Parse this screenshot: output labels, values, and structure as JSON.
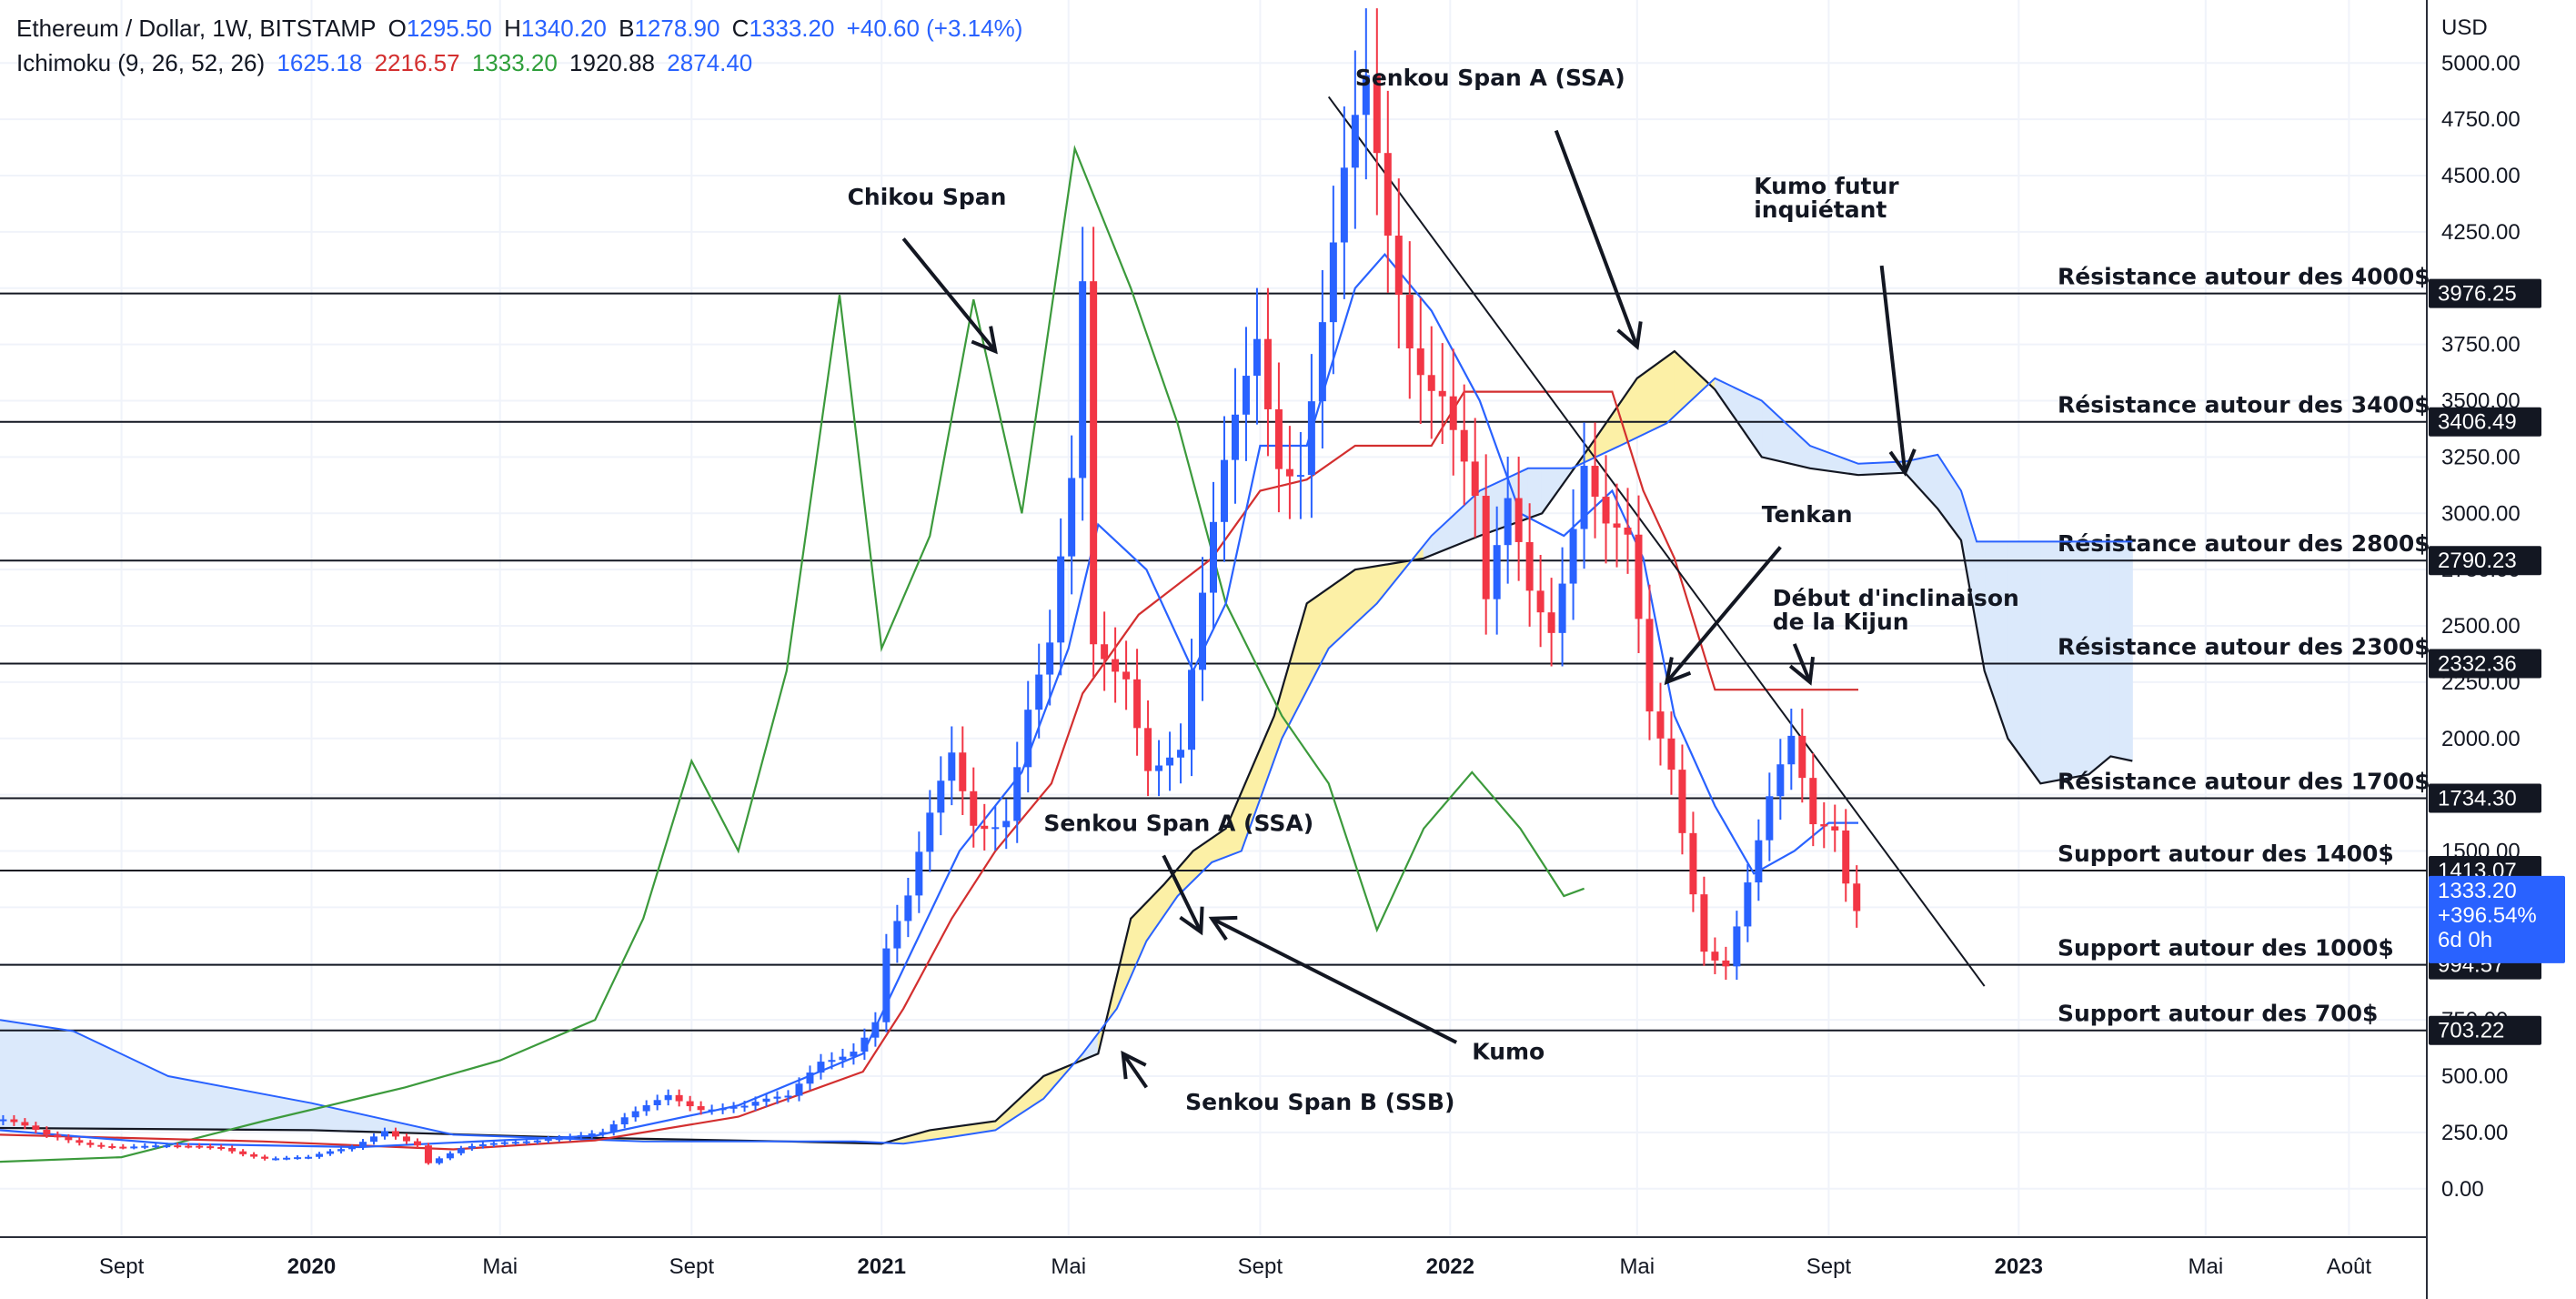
{
  "legend": {
    "symbol": "Ethereum / Dollar, 1W, BITSTAMP",
    "o_label": "O",
    "o_value": "1295.50",
    "h_label": "H",
    "h_value": "1340.20",
    "b_label": "B",
    "b_value": "1278.90",
    "c_label": "C",
    "c_value": "1333.20",
    "change": "+40.60 (+3.14%)",
    "indicator": "Ichimoku (9, 26, 52, 26)",
    "ind_values": [
      "1625.18",
      "2216.57",
      "1333.20",
      "1920.88",
      "2874.40"
    ],
    "ind_colors": [
      "#2962ff",
      "#d32f2f",
      "#2e9e3a",
      "#131722",
      "#2962ff"
    ]
  },
  "colors": {
    "up": "#2962ff",
    "down": "#f23645",
    "tenkan": "#2962ff",
    "kijun": "#d32f2f",
    "chikou": "#3c9a3c",
    "ssa": "#2962ff",
    "ssb": "#131722",
    "kumo_bull": "#dbe9fb",
    "kumo_bear": "#fcf0a6",
    "current_badge": "#2962ff"
  },
  "chart_data": {
    "type": "candlestick",
    "currency": "USD",
    "y_ticks": [
      "0.00",
      "250.00",
      "500.00",
      "750.00",
      "1000.00",
      "1250.00",
      "1500.00",
      "1750.00",
      "2000.00",
      "2250.00",
      "2500.00",
      "2750.00",
      "3000.00",
      "3250.00",
      "3500.00",
      "3750.00",
      "4000.00",
      "4250.00",
      "4500.00",
      "4750.00",
      "5000.00"
    ],
    "x_ticks": [
      {
        "label": "Sept",
        "date": "2019-09-01",
        "bold": false
      },
      {
        "label": "2020",
        "date": "2020-01-01",
        "bold": true
      },
      {
        "label": "Mai",
        "date": "2020-05-01",
        "bold": false
      },
      {
        "label": "Sept",
        "date": "2020-09-01",
        "bold": false
      },
      {
        "label": "2021",
        "date": "2021-01-01",
        "bold": true
      },
      {
        "label": "Mai",
        "date": "2021-05-01",
        "bold": false
      },
      {
        "label": "Sept",
        "date": "2021-09-01",
        "bold": false
      },
      {
        "label": "2022",
        "date": "2022-01-01",
        "bold": true
      },
      {
        "label": "Mai",
        "date": "2022-05-01",
        "bold": false
      },
      {
        "label": "Sept",
        "date": "2022-09-01",
        "bold": false
      },
      {
        "label": "2023",
        "date": "2023-01-01",
        "bold": true
      },
      {
        "label": "Mai",
        "date": "2023-05-01",
        "bold": false
      },
      {
        "label": "Août",
        "date": "2023-08-01",
        "bold": false
      }
    ],
    "x_range": [
      "2019-06-15",
      "2023-09-20"
    ],
    "y_range": [
      -215,
      5280
    ],
    "horizontal_levels": [
      {
        "value": 3976.25,
        "badge": "3976.25",
        "label": "Résistance autour des 4000$"
      },
      {
        "value": 3406.49,
        "badge": "3406.49",
        "label": "Résistance autour des 3400$"
      },
      {
        "value": 2790.23,
        "badge": "2790.23",
        "label": "Résistance autour des 2800$"
      },
      {
        "value": 2332.36,
        "badge": "2332.36",
        "label": "Résistance autour des 2300$"
      },
      {
        "value": 1734.3,
        "badge": "1734.30",
        "label": "Résistance autour des 1700$"
      },
      {
        "value": 1413.07,
        "badge": "1413.07",
        "label": "Support autour des 1400$"
      },
      {
        "value": 994.57,
        "badge": "994.57",
        "label": "Support autour des 1000$"
      },
      {
        "value": 703.22,
        "badge": "703.22",
        "label": "Support autour des 700$"
      }
    ],
    "current_price": {
      "value": 1333.2,
      "lines": [
        "1333.20",
        "+396.54%",
        "6d 0h"
      ]
    },
    "candles": [
      {
        "d": "2019-06-17",
        "c": 300
      },
      {
        "d": "2019-07-15",
        "c": 230
      },
      {
        "d": "2019-08-12",
        "c": 205
      },
      {
        "d": "2019-09-09",
        "c": 190
      },
      {
        "d": "2019-10-07",
        "c": 180
      },
      {
        "d": "2019-11-04",
        "c": 185
      },
      {
        "d": "2019-12-02",
        "c": 140
      },
      {
        "d": "2019-12-30",
        "c": 135
      },
      {
        "d": "2020-01-27",
        "c": 180
      },
      {
        "d": "2020-02-17",
        "c": 270
      },
      {
        "d": "2020-03-09",
        "c": 200
      },
      {
        "d": "2020-03-16",
        "c": 115
      },
      {
        "d": "2020-04-06",
        "c": 170
      },
      {
        "d": "2020-05-04",
        "c": 205
      },
      {
        "d": "2020-06-01",
        "c": 235
      },
      {
        "d": "2020-07-06",
        "c": 240
      },
      {
        "d": "2020-07-27",
        "c": 330
      },
      {
        "d": "2020-08-17",
        "c": 430
      },
      {
        "d": "2020-09-07",
        "c": 370
      },
      {
        "d": "2020-10-05",
        "c": 355
      },
      {
        "d": "2020-11-02",
        "c": 400
      },
      {
        "d": "2020-11-23",
        "c": 590
      },
      {
        "d": "2020-12-14",
        "c": 640
      },
      {
        "d": "2020-12-28",
        "c": 740
      },
      {
        "d": "2021-01-04",
        "c": 1040
      },
      {
        "d": "2021-01-18",
        "c": 1230
      },
      {
        "d": "2021-02-01",
        "c": 1600
      },
      {
        "d": "2021-02-15",
        "c": 1950
      },
      {
        "d": "2021-03-01",
        "c": 1700
      },
      {
        "d": "2021-03-22",
        "c": 1700
      },
      {
        "d": "2021-04-05",
        "c": 2100
      },
      {
        "d": "2021-04-19",
        "c": 2300
      },
      {
        "d": "2021-05-03",
        "c": 3000
      },
      {
        "d": "2021-05-10",
        "c": 3900
      },
      {
        "d": "2021-05-17",
        "c": 2400
      },
      {
        "d": "2021-06-07",
        "c": 2400
      },
      {
        "d": "2021-06-21",
        "c": 1950
      },
      {
        "d": "2021-07-12",
        "c": 1900
      },
      {
        "d": "2021-07-26",
        "c": 2500
      },
      {
        "d": "2021-08-09",
        "c": 3100
      },
      {
        "d": "2021-08-30",
        "c": 3900
      },
      {
        "d": "2021-09-13",
        "c": 3400
      },
      {
        "d": "2021-09-27",
        "c": 3300
      },
      {
        "d": "2021-10-11",
        "c": 3800
      },
      {
        "d": "2021-10-25",
        "c": 4300
      },
      {
        "d": "2021-11-08",
        "c": 4700
      },
      {
        "d": "2021-11-22",
        "c": 4200
      },
      {
        "d": "2021-12-06",
        "c": 3900
      },
      {
        "d": "2021-12-27",
        "c": 3700
      },
      {
        "d": "2022-01-17",
        "c": 3000
      },
      {
        "d": "2022-01-24",
        "c": 2500
      },
      {
        "d": "2022-02-07",
        "c": 2900
      },
      {
        "d": "2022-02-21",
        "c": 2600
      },
      {
        "d": "2022-03-07",
        "c": 2550
      },
      {
        "d": "2022-03-28",
        "c": 3400
      },
      {
        "d": "2022-04-11",
        "c": 3000
      },
      {
        "d": "2022-04-25",
        "c": 2800
      },
      {
        "d": "2022-05-09",
        "c": 2000
      },
      {
        "d": "2022-05-23",
        "c": 1800
      },
      {
        "d": "2022-06-13",
        "c": 1100
      },
      {
        "d": "2022-06-27",
        "c": 1050
      },
      {
        "d": "2022-07-11",
        "c": 1400
      },
      {
        "d": "2022-07-25",
        "c": 1700
      },
      {
        "d": "2022-08-08",
        "c": 1900
      },
      {
        "d": "2022-08-22",
        "c": 1550
      },
      {
        "d": "2022-09-05",
        "c": 1600
      },
      {
        "d": "2022-09-12",
        "c": 1400
      },
      {
        "d": "2022-09-19",
        "c": 1300
      },
      {
        "d": "2022-09-26",
        "c": 1333.2
      }
    ],
    "tenkan": [
      {
        "d": "2019-06-15",
        "v": 260
      },
      {
        "d": "2019-10-01",
        "v": 200
      },
      {
        "d": "2020-02-01",
        "v": 185
      },
      {
        "d": "2020-07-01",
        "v": 235
      },
      {
        "d": "2020-10-01",
        "v": 370
      },
      {
        "d": "2020-12-20",
        "v": 600
      },
      {
        "d": "2021-01-20",
        "v": 1050
      },
      {
        "d": "2021-02-20",
        "v": 1500
      },
      {
        "d": "2021-04-01",
        "v": 1850
      },
      {
        "d": "2021-05-01",
        "v": 2400
      },
      {
        "d": "2021-05-20",
        "v": 2950
      },
      {
        "d": "2021-06-20",
        "v": 2750
      },
      {
        "d": "2021-07-20",
        "v": 2300
      },
      {
        "d": "2021-08-10",
        "v": 2600
      },
      {
        "d": "2021-09-01",
        "v": 3300
      },
      {
        "d": "2021-10-01",
        "v": 3300
      },
      {
        "d": "2021-11-01",
        "v": 4000
      },
      {
        "d": "2021-11-20",
        "v": 4150
      },
      {
        "d": "2021-12-20",
        "v": 3900
      },
      {
        "d": "2022-01-20",
        "v": 3500
      },
      {
        "d": "2022-02-15",
        "v": 3000
      },
      {
        "d": "2022-03-15",
        "v": 2900
      },
      {
        "d": "2022-04-15",
        "v": 3100
      },
      {
        "d": "2022-05-05",
        "v": 2800
      },
      {
        "d": "2022-05-25",
        "v": 2100
      },
      {
        "d": "2022-06-20",
        "v": 1700
      },
      {
        "d": "2022-07-15",
        "v": 1400
      },
      {
        "d": "2022-08-10",
        "v": 1500
      },
      {
        "d": "2022-09-01",
        "v": 1625.18
      },
      {
        "d": "2022-09-20",
        "v": 1625.18
      }
    ],
    "kijun": [
      {
        "d": "2019-06-15",
        "v": 240
      },
      {
        "d": "2019-12-01",
        "v": 210
      },
      {
        "d": "2020-04-01",
        "v": 175
      },
      {
        "d": "2020-07-01",
        "v": 215
      },
      {
        "d": "2020-10-01",
        "v": 320
      },
      {
        "d": "2020-12-20",
        "v": 520
      },
      {
        "d": "2021-01-15",
        "v": 800
      },
      {
        "d": "2021-02-15",
        "v": 1200
      },
      {
        "d": "2021-03-15",
        "v": 1500
      },
      {
        "d": "2021-04-20",
        "v": 1800
      },
      {
        "d": "2021-05-10",
        "v": 2200
      },
      {
        "d": "2021-06-15",
        "v": 2550
      },
      {
        "d": "2021-08-01",
        "v": 2800
      },
      {
        "d": "2021-09-01",
        "v": 3100
      },
      {
        "d": "2021-10-01",
        "v": 3150
      },
      {
        "d": "2021-11-01",
        "v": 3300
      },
      {
        "d": "2021-12-20",
        "v": 3300
      },
      {
        "d": "2022-01-10",
        "v": 3540
      },
      {
        "d": "2022-04-15",
        "v": 3540
      },
      {
        "d": "2022-05-05",
        "v": 3100
      },
      {
        "d": "2022-05-25",
        "v": 2800
      },
      {
        "d": "2022-06-20",
        "v": 2216.57
      },
      {
        "d": "2022-09-20",
        "v": 2216.57
      }
    ],
    "chikou": [
      {
        "d": "2019-06-15",
        "v": 120
      },
      {
        "d": "2019-09-01",
        "v": 140
      },
      {
        "d": "2019-12-01",
        "v": 300
      },
      {
        "d": "2020-03-01",
        "v": 450
      },
      {
        "d": "2020-05-01",
        "v": 570
      },
      {
        "d": "2020-07-01",
        "v": 750
      },
      {
        "d": "2020-08-01",
        "v": 1200
      },
      {
        "d": "2020-09-01",
        "v": 1900
      },
      {
        "d": "2020-10-01",
        "v": 1500
      },
      {
        "d": "2020-11-01",
        "v": 2300
      },
      {
        "d": "2020-12-05",
        "v": 3970
      },
      {
        "d": "2021-01-01",
        "v": 2400
      },
      {
        "d": "2021-02-01",
        "v": 2900
      },
      {
        "d": "2021-03-01",
        "v": 3950
      },
      {
        "d": "2021-04-01",
        "v": 3000
      },
      {
        "d": "2021-05-05",
        "v": 4620
      },
      {
        "d": "2021-06-10",
        "v": 4000
      },
      {
        "d": "2021-07-10",
        "v": 3400
      },
      {
        "d": "2021-08-10",
        "v": 2600
      },
      {
        "d": "2021-09-15",
        "v": 2100
      },
      {
        "d": "2021-10-15",
        "v": 1800
      },
      {
        "d": "2021-11-15",
        "v": 1150
      },
      {
        "d": "2021-12-15",
        "v": 1600
      },
      {
        "d": "2022-01-15",
        "v": 1850
      },
      {
        "d": "2022-02-15",
        "v": 1600
      },
      {
        "d": "2022-03-15",
        "v": 1300
      },
      {
        "d": "2022-03-28",
        "v": 1333.2
      }
    ],
    "ssa": [
      {
        "d": "2019-06-15",
        "v": 750
      },
      {
        "d": "2019-08-01",
        "v": 700
      },
      {
        "d": "2019-10-01",
        "v": 500
      },
      {
        "d": "2020-01-01",
        "v": 380
      },
      {
        "d": "2020-04-01",
        "v": 240
      },
      {
        "d": "2020-08-01",
        "v": 210
      },
      {
        "d": "2020-12-15",
        "v": 210
      },
      {
        "d": "2021-01-15",
        "v": 200
      },
      {
        "d": "2021-02-15",
        "v": 230
      },
      {
        "d": "2021-03-15",
        "v": 260
      },
      {
        "d": "2021-04-15",
        "v": 400
      },
      {
        "d": "2021-05-10",
        "v": 600
      },
      {
        "d": "2021-06-01",
        "v": 800
      },
      {
        "d": "2021-06-20",
        "v": 1100
      },
      {
        "d": "2021-07-10",
        "v": 1300
      },
      {
        "d": "2021-08-01",
        "v": 1450
      },
      {
        "d": "2021-08-20",
        "v": 1500
      },
      {
        "d": "2021-09-15",
        "v": 2000
      },
      {
        "d": "2021-10-15",
        "v": 2400
      },
      {
        "d": "2021-11-15",
        "v": 2600
      },
      {
        "d": "2021-12-20",
        "v": 2900
      },
      {
        "d": "2022-01-20",
        "v": 3100
      },
      {
        "d": "2022-02-20",
        "v": 3200
      },
      {
        "d": "2022-03-20",
        "v": 3200
      },
      {
        "d": "2022-04-20",
        "v": 3300
      },
      {
        "d": "2022-05-20",
        "v": 3400
      },
      {
        "d": "2022-06-20",
        "v": 3600
      },
      {
        "d": "2022-07-20",
        "v": 3500
      },
      {
        "d": "2022-08-20",
        "v": 3300
      },
      {
        "d": "2022-09-20",
        "v": 3220
      },
      {
        "d": "2022-10-20",
        "v": 3230
      },
      {
        "d": "2022-11-10",
        "v": 3260
      },
      {
        "d": "2022-11-25",
        "v": 3100
      },
      {
        "d": "2022-12-05",
        "v": 2874.4
      },
      {
        "d": "2023-03-15",
        "v": 2874.4
      }
    ],
    "ssb": [
      {
        "d": "2019-06-15",
        "v": 270
      },
      {
        "d": "2020-01-01",
        "v": 260
      },
      {
        "d": "2020-06-01",
        "v": 230
      },
      {
        "d": "2020-11-01",
        "v": 210
      },
      {
        "d": "2021-01-01",
        "v": 200
      },
      {
        "d": "2021-02-01",
        "v": 260
      },
      {
        "d": "2021-03-15",
        "v": 300
      },
      {
        "d": "2021-04-15",
        "v": 500
      },
      {
        "d": "2021-05-20",
        "v": 600
      },
      {
        "d": "2021-06-10",
        "v": 1200
      },
      {
        "d": "2021-07-01",
        "v": 1350
      },
      {
        "d": "2021-07-20",
        "v": 1500
      },
      {
        "d": "2021-08-10",
        "v": 1600
      },
      {
        "d": "2021-09-10",
        "v": 2100
      },
      {
        "d": "2021-10-01",
        "v": 2600
      },
      {
        "d": "2021-11-01",
        "v": 2750
      },
      {
        "d": "2021-12-15",
        "v": 2800
      },
      {
        "d": "2022-01-20",
        "v": 2900
      },
      {
        "d": "2022-03-01",
        "v": 3000
      },
      {
        "d": "2022-04-01",
        "v": 3300
      },
      {
        "d": "2022-05-01",
        "v": 3600
      },
      {
        "d": "2022-05-25",
        "v": 3720
      },
      {
        "d": "2022-06-20",
        "v": 3550
      },
      {
        "d": "2022-07-20",
        "v": 3250
      },
      {
        "d": "2022-08-20",
        "v": 3200
      },
      {
        "d": "2022-09-20",
        "v": 3170
      },
      {
        "d": "2022-10-20",
        "v": 3180
      },
      {
        "d": "2022-11-10",
        "v": 3020
      },
      {
        "d": "2022-11-25",
        "v": 2880
      },
      {
        "d": "2022-12-10",
        "v": 2300
      },
      {
        "d": "2022-12-25",
        "v": 2000
      },
      {
        "d": "2023-01-15",
        "v": 1800
      },
      {
        "d": "2023-02-15",
        "v": 1840
      },
      {
        "d": "2023-03-01",
        "v": 1920.88
      },
      {
        "d": "2023-03-15",
        "v": 1900
      }
    ],
    "trendline": [
      {
        "d": "2021-10-15",
        "v": 4850
      },
      {
        "d": "2022-12-10",
        "v": 900
      }
    ],
    "annotations": [
      {
        "text": [
          "Chikou Span"
        ],
        "d": "2020-12-10",
        "v": 4370,
        "arrow": [
          [
            "2021-01-15",
            "4220"
          ],
          [
            "2021-03-15",
            "3720"
          ]
        ]
      },
      {
        "text": [
          "Senkou Span A (SSA)"
        ],
        "d": "2021-11-01",
        "v": 4900,
        "arrow": [
          [
            "2022-03-10",
            "4700"
          ],
          [
            "2022-05-01",
            "3740"
          ]
        ]
      },
      {
        "text": [
          "Kumo futur",
          "inquiétant"
        ],
        "d": "2022-07-15",
        "v": 4420,
        "arrow": [
          [
            "2022-10-05",
            "4100"
          ],
          [
            "2022-10-20",
            "3180"
          ]
        ]
      },
      {
        "text": [
          "Tenkan"
        ],
        "d": "2022-07-20",
        "v": 2960,
        "arrow": [
          [
            "2022-08-01",
            "2850"
          ],
          [
            "2022-05-20",
            "2250"
          ]
        ]
      },
      {
        "text": [
          "Début d'inclinaison",
          "de la Kijun"
        ],
        "d": "2022-07-27",
        "v": 2590,
        "arrow": [
          [
            "2022-08-10",
            "2420"
          ],
          [
            "2022-08-20",
            "2250"
          ]
        ]
      },
      {
        "text": [
          "Senkou Span A (SSA)"
        ],
        "d": "2021-04-15",
        "v": 1590,
        "arrow": [
          [
            "2021-07-01",
            "1480"
          ],
          [
            "2021-07-25",
            "1140"
          ]
        ]
      },
      {
        "text": [
          "Kumo"
        ],
        "d": "2022-01-15",
        "v": 575,
        "arrow": [
          [
            "2022-01-05",
            "650"
          ],
          [
            "2021-08-01",
            "1200"
          ]
        ]
      },
      {
        "text": [
          "Senkou Span B (SSB)"
        ],
        "d": "2021-07-15",
        "v": 350,
        "arrow": [
          [
            "2021-06-20",
            "450"
          ],
          [
            "2021-06-05",
            "600"
          ]
        ]
      }
    ]
  }
}
